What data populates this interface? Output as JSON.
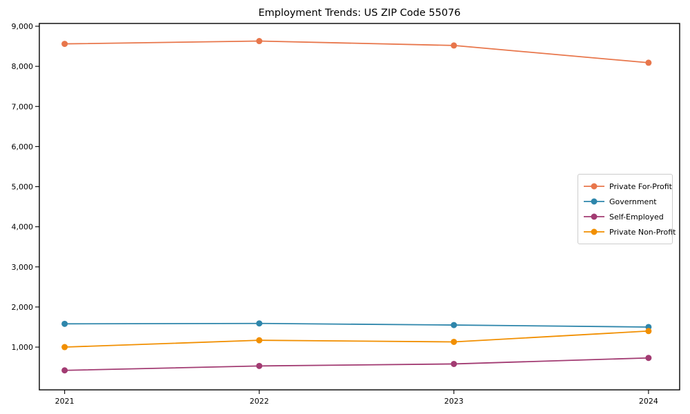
{
  "figure": {
    "background_color": "#ffffff",
    "spine_color": "#000000"
  },
  "chart_data": {
    "type": "line",
    "title": "Employment Trends: US ZIP Code 55076",
    "xlabel": "",
    "ylabel": "",
    "x": [
      2021,
      2022,
      2023,
      2024
    ],
    "xtick_labels": [
      "2021",
      "2022",
      "2023",
      "2024"
    ],
    "series": [
      {
        "name": "Private For-Profit",
        "color": "#E8764B",
        "values": [
          8560,
          8630,
          8520,
          8090
        ]
      },
      {
        "name": "Government",
        "color": "#2E86AB",
        "values": [
          1580,
          1590,
          1550,
          1500
        ]
      },
      {
        "name": "Self-Employed",
        "color": "#A23B72",
        "values": [
          420,
          530,
          580,
          730
        ]
      },
      {
        "name": "Private Non-Profit",
        "color": "#F18F01",
        "values": [
          1000,
          1170,
          1130,
          1400
        ]
      }
    ],
    "yticks": [
      1000,
      2000,
      3000,
      4000,
      5000,
      6000,
      7000,
      8000,
      9000
    ],
    "ytick_labels": [
      "1,000",
      "2,000",
      "3,000",
      "4,000",
      "5,000",
      "6,000",
      "7,000",
      "8,000",
      "9,000"
    ],
    "xlim": [
      2020.87,
      2024.16
    ],
    "ylim": [
      -66,
      9069
    ],
    "grid": false,
    "marker": "circle",
    "legend_position": "center right"
  }
}
